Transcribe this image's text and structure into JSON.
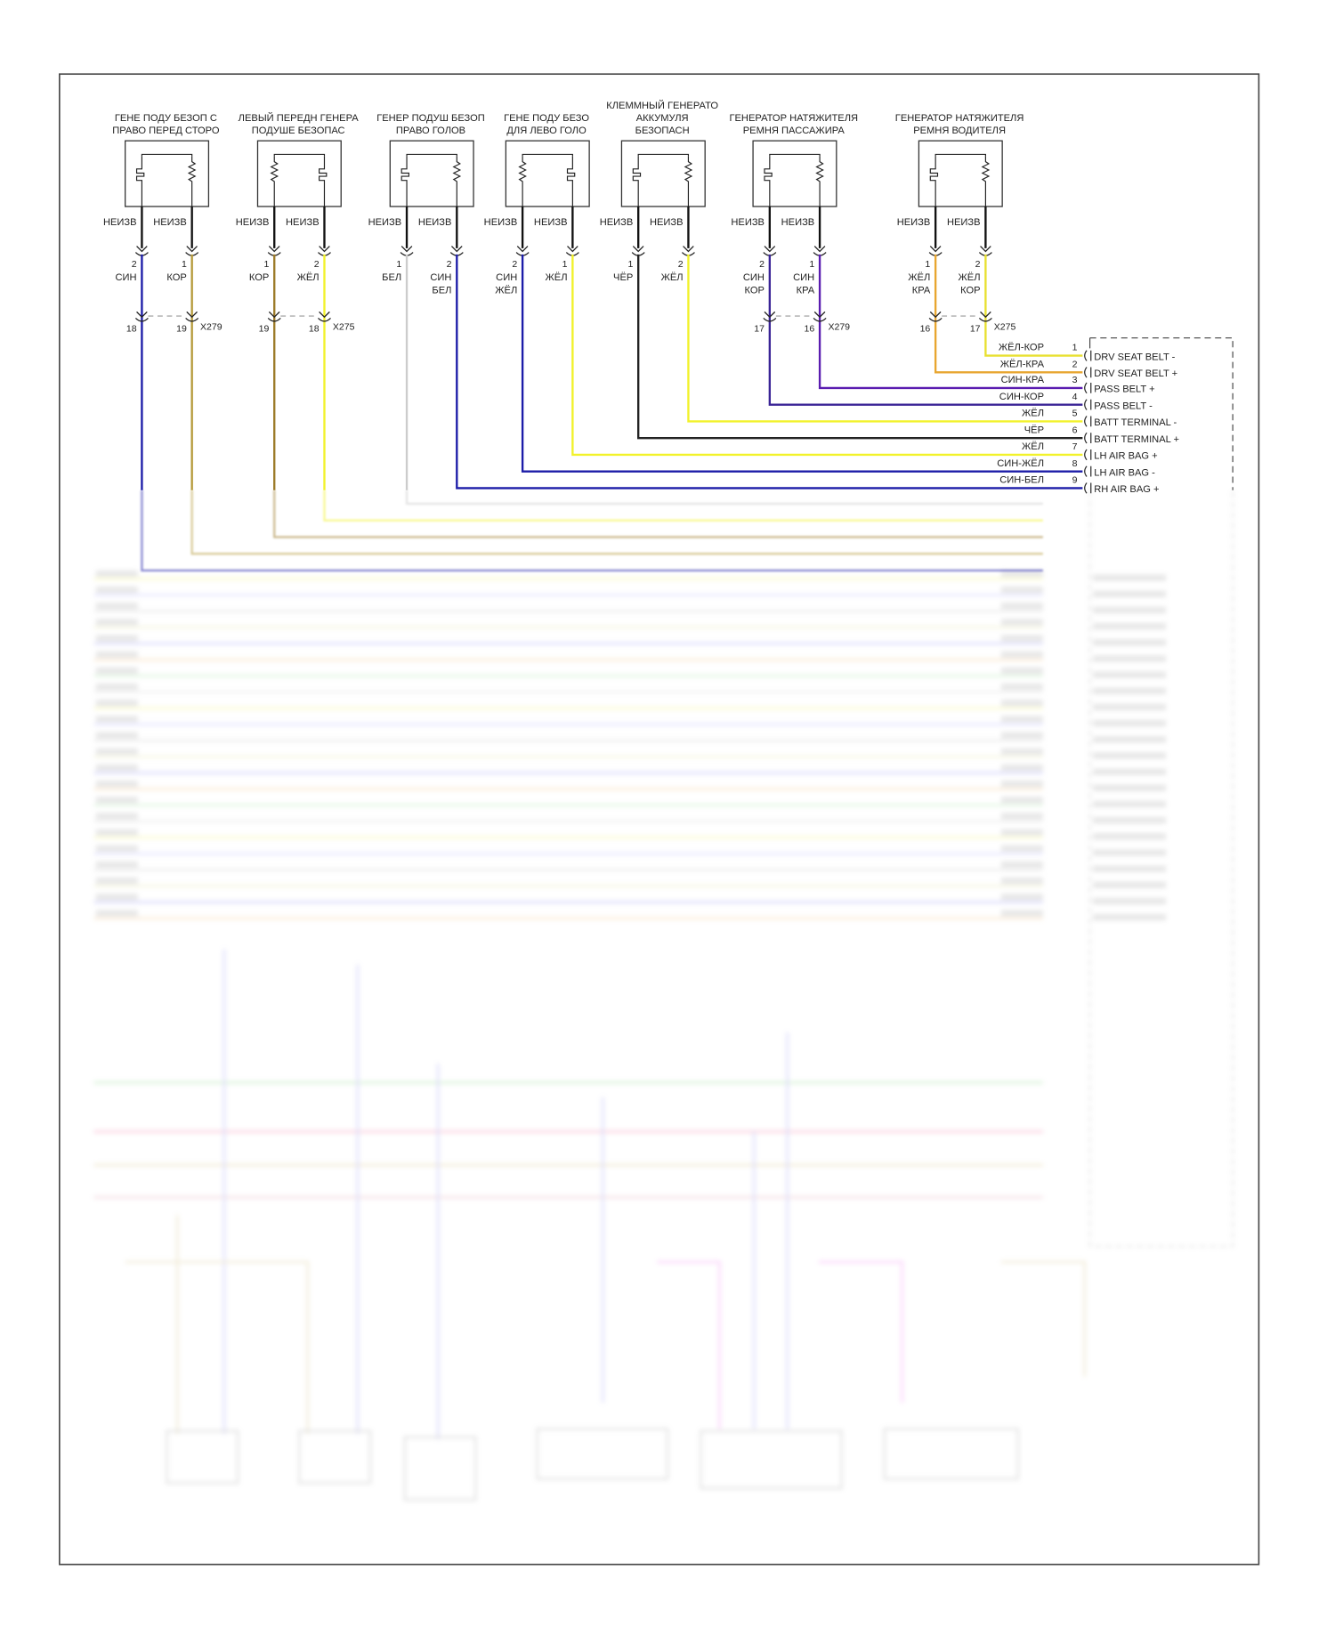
{
  "unknown_label": "НЕИЗВ",
  "components": [
    {
      "title": [
        "ГЕНЕ ПОДУ БЕЗОП С",
        "ПРАВО ПЕРЕД СТОРО"
      ],
      "left_symbol": "squib",
      "right_symbol": "resistor",
      "left": {
        "pin": "2",
        "color": [
          "СИН"
        ],
        "hex": "#1c1ca8"
      },
      "right": {
        "pin": "1",
        "color": [
          "КОР"
        ],
        "hex": "#b59a3a"
      },
      "inline": {
        "left_pin": "18",
        "right_pin": "19",
        "name": "X279"
      }
    },
    {
      "title": [
        "ЛЕВЫЙ ПЕРЕДН ГЕНЕРА",
        "ПОДУШЕ БЕЗОПАС"
      ],
      "left_symbol": "resistor",
      "right_symbol": "squib",
      "left": {
        "pin": "1",
        "color": [
          "КОР"
        ],
        "hex": "#9c7a28"
      },
      "right": {
        "pin": "2",
        "color": [
          "ЖЁЛ"
        ],
        "hex": "#f2f22a"
      },
      "inline": {
        "left_pin": "19",
        "right_pin": "18",
        "name": "X275"
      }
    },
    {
      "title": [
        "ГЕНЕР ПОДУШ БЕЗОП",
        "ПРАВО ГОЛОВ"
      ],
      "left_symbol": "squib",
      "right_symbol": "resistor",
      "left": {
        "pin": "1",
        "color": [
          "БЕЛ"
        ],
        "hex": "#cccccc"
      },
      "right": {
        "pin": "2",
        "color": [
          "СИН",
          "БЕЛ"
        ],
        "hex": "#1c1ca8"
      }
    },
    {
      "title": [
        "ГЕНЕ ПОДУ БЕЗО",
        "ДЛЯ ЛЕВО ГОЛО"
      ],
      "left_symbol": "resistor",
      "right_symbol": "squib",
      "left": {
        "pin": "2",
        "color": [
          "СИН",
          "ЖЁЛ"
        ],
        "hex": "#1c1ca8"
      },
      "right": {
        "pin": "1",
        "color": [
          "ЖЁЛ"
        ],
        "hex": "#f2f22a"
      }
    },
    {
      "title": [
        "КЛЕММНЫЙ ГЕНЕРАТО",
        "АККУМУЛЯ",
        "БЕЗОПАСН"
      ],
      "left_symbol": "squib",
      "right_symbol": "resistor",
      "left": {
        "pin": "1",
        "color": [
          "ЧЁР"
        ],
        "hex": "#222222"
      },
      "right": {
        "pin": "2",
        "color": [
          "ЖЁЛ"
        ],
        "hex": "#f2f22a"
      }
    },
    {
      "title": [
        "ГЕНЕРАТОР НАТЯЖИТЕЛЯ",
        "РЕМНЯ ПАССАЖИРА"
      ],
      "left_symbol": "squib",
      "right_symbol": "resistor",
      "left": {
        "pin": "2",
        "color": [
          "СИН",
          "КОР"
        ],
        "hex": "#3a2496"
      },
      "right": {
        "pin": "1",
        "color": [
          "СИН",
          "КРА"
        ],
        "hex": "#5a1cb0"
      },
      "inline": {
        "left_pin": "17",
        "right_pin": "16",
        "name": "X279"
      }
    },
    {
      "title": [
        "ГЕНЕРАТОР НАТЯЖИТЕЛЯ",
        "РЕМНЯ ВОДИТЕЛЯ"
      ],
      "left_symbol": "squib",
      "right_symbol": "resistor",
      "left": {
        "pin": "1",
        "color": [
          "ЖЁЛ",
          "КРА"
        ],
        "hex": "#e8a630"
      },
      "right": {
        "pin": "2",
        "color": [
          "ЖЁЛ",
          "КОР"
        ],
        "hex": "#e8e030"
      },
      "inline": {
        "left_pin": "16",
        "right_pin": "17",
        "name": "X275"
      }
    }
  ],
  "module_pins": [
    {
      "num": "1",
      "wire": "ЖЁЛ-КОР",
      "label": "DRV SEAT BELT -",
      "hex": "#e8e030"
    },
    {
      "num": "2",
      "wire": "ЖЁЛ-КРА",
      "label": "DRV SEAT BELT +",
      "hex": "#e8a630"
    },
    {
      "num": "3",
      "wire": "СИН-КРА",
      "label": "PASS BELT +",
      "hex": "#5a1cb0"
    },
    {
      "num": "4",
      "wire": "СИН-КОР",
      "label": "PASS BELT -",
      "hex": "#3a2496"
    },
    {
      "num": "5",
      "wire": "ЖЁЛ",
      "label": "BATT TERMINAL -",
      "hex": "#f2f22a"
    },
    {
      "num": "6",
      "wire": "ЧЁР",
      "label": "BATT TERMINAL +",
      "hex": "#222222"
    },
    {
      "num": "7",
      "wire": "ЖЁЛ",
      "label": "LH AIR BAG +",
      "hex": "#f2f22a"
    },
    {
      "num": "8",
      "wire": "СИН-ЖЁЛ",
      "label": "LH AIR BAG -",
      "hex": "#1c1ca8"
    },
    {
      "num": "9",
      "wire": "СИН-БЕЛ",
      "label": "RH AIR BAG +",
      "hex": "#1c1ca8"
    }
  ]
}
